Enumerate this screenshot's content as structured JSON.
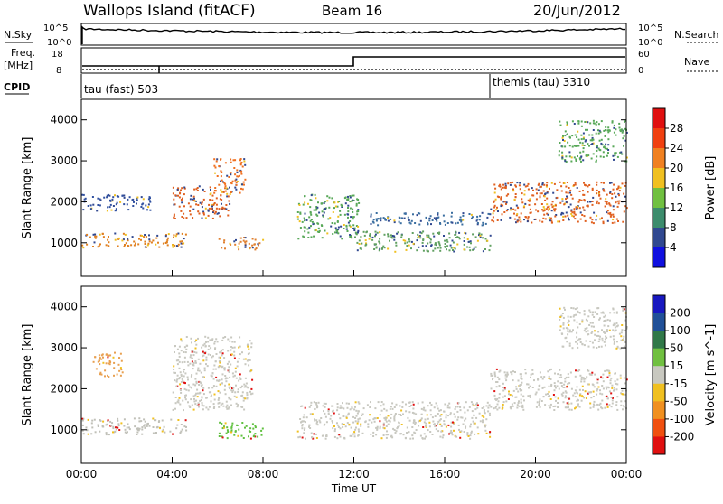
{
  "header": {
    "site": "Wallops Island (fitACF)",
    "beam": "Beam 16",
    "date": "20/Jun/2012"
  },
  "ancillary": {
    "nsky_label": "N.Sky",
    "nsearch_label": "N.Search",
    "freq_label_line1": "Freq.",
    "freq_label_line2": "[MHz]",
    "nave_label": "Nave",
    "cpid_label": "CPID",
    "nsky_ticks": [
      "10^5",
      "10^0"
    ],
    "nsearch_ticks": [
      "10^5",
      "10^0"
    ],
    "freq_ticks": [
      "18",
      "8"
    ],
    "nave_ticks": [
      "60",
      "0"
    ],
    "cpid_segments": [
      {
        "label": "tau (fast) 503",
        "start_hour": 0
      },
      {
        "label": "themis (tau) 3310",
        "start_hour": 18
      }
    ]
  },
  "chart_data": [
    {
      "type": "heatmap",
      "name": "power-panel",
      "xlabel": "",
      "ylabel": "Slant Range [km]",
      "xlim": [
        0,
        24
      ],
      "ylim": [
        180,
        4500
      ],
      "y_ticks": [
        "1000",
        "2000",
        "3000",
        "4000"
      ],
      "x_ticks": [],
      "colorbar": {
        "label": "Power [dB]",
        "ticks": [
          "28",
          "24",
          "20",
          "16",
          "12",
          "8",
          "4"
        ],
        "colors": [
          "#e01010",
          "#f04010",
          "#f08020",
          "#f0c020",
          "#70c040",
          "#3c8c6c",
          "#304890",
          "#1010e0"
        ]
      },
      "bands": [
        {
          "t0": 0.0,
          "t1": 4.6,
          "r0": 900,
          "r1": 1250,
          "color": "#e08020"
        },
        {
          "t0": 4.0,
          "t1": 6.5,
          "r0": 1600,
          "r1": 2400,
          "color": "#e06020"
        },
        {
          "t0": 5.8,
          "t1": 7.2,
          "r0": 2200,
          "r1": 3100,
          "color": "#f07020"
        },
        {
          "t0": 6.0,
          "t1": 8.0,
          "r0": 850,
          "r1": 1150,
          "color": "#e08030"
        },
        {
          "t0": 9.5,
          "t1": 12.2,
          "r0": 1100,
          "r1": 2200,
          "color": "#58a858"
        },
        {
          "t0": 12.0,
          "t1": 18.0,
          "r0": 800,
          "r1": 1300,
          "color": "#60a060"
        },
        {
          "t0": 12.5,
          "t1": 18.0,
          "r0": 1450,
          "r1": 1750,
          "color": "#3a6ea0"
        },
        {
          "t0": 18.0,
          "t1": 24.0,
          "r0": 1500,
          "r1": 2500,
          "color": "#e06020"
        },
        {
          "t0": 21.0,
          "t1": 24.0,
          "r0": 3000,
          "r1": 4000,
          "color": "#58a858"
        },
        {
          "t0": 0.0,
          "t1": 3.0,
          "r0": 1800,
          "r1": 2200,
          "color": "#3050a0"
        }
      ]
    },
    {
      "type": "heatmap",
      "name": "velocity-panel",
      "xlabel": "Time UT",
      "ylabel": "Slant Range [km]",
      "xlim": [
        0,
        24
      ],
      "ylim": [
        180,
        4500
      ],
      "y_ticks": [
        "1000",
        "2000",
        "3000",
        "4000"
      ],
      "x_ticks": [
        "00:00",
        "04:00",
        "08:00",
        "12:00",
        "16:00",
        "20:00",
        "00:00"
      ],
      "colorbar": {
        "label": "Velocity [m s^-1]",
        "ticks": [
          "200",
          "100",
          "50",
          "15",
          "-15",
          "-50",
          "-100",
          "-200"
        ],
        "colors": [
          "#1818c0",
          "#205098",
          "#307848",
          "#70c040",
          "#c8c8c0",
          "#f0c020",
          "#f09020",
          "#f05010",
          "#e01010"
        ]
      },
      "bands": [
        {
          "t0": 0.0,
          "t1": 4.6,
          "r0": 900,
          "r1": 1300,
          "color": "#c0c0b8"
        },
        {
          "t0": 4.0,
          "t1": 7.5,
          "r0": 1500,
          "r1": 3300,
          "color": "#c8c8c0"
        },
        {
          "t0": 6.0,
          "t1": 8.0,
          "r0": 800,
          "r1": 1200,
          "color": "#60c040"
        },
        {
          "t0": 9.5,
          "t1": 18.0,
          "r0": 800,
          "r1": 1700,
          "color": "#c8c8c0"
        },
        {
          "t0": 18.0,
          "t1": 24.0,
          "r0": 1500,
          "r1": 2500,
          "color": "#c8c8c0"
        },
        {
          "t0": 0.5,
          "t1": 1.8,
          "r0": 2300,
          "r1": 2900,
          "color": "#e8a050"
        },
        {
          "t0": 21.0,
          "t1": 24.0,
          "r0": 3000,
          "r1": 4000,
          "color": "#c8c8c0"
        }
      ]
    }
  ]
}
